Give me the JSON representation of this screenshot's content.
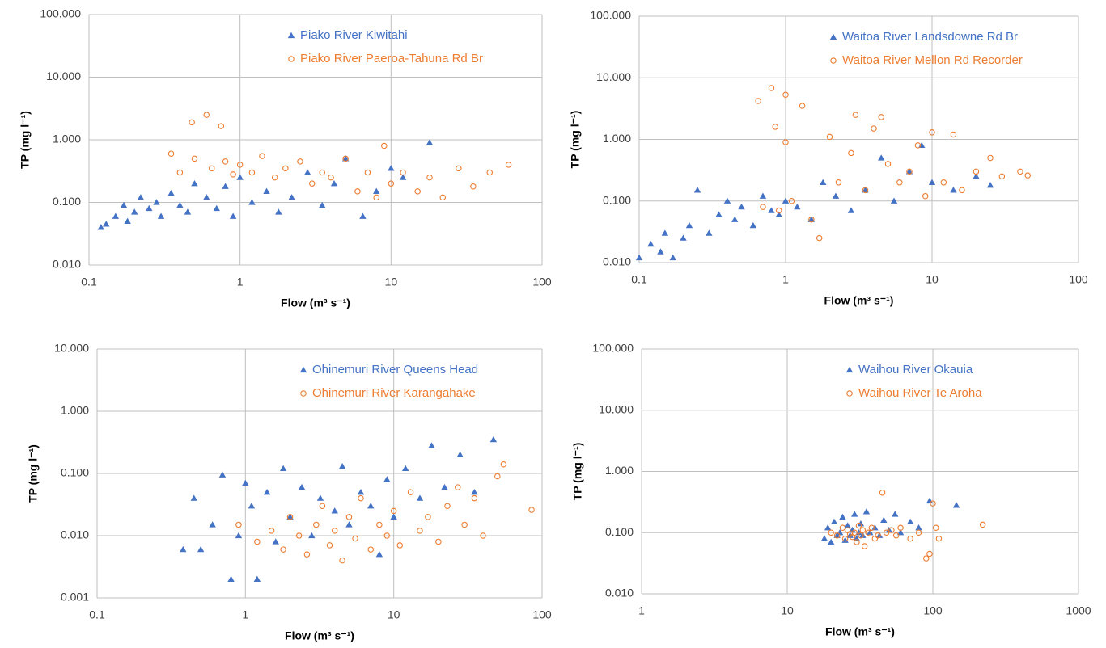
{
  "chart_data": [
    {
      "type": "scatter",
      "xlabel": "Flow (m³ s⁻¹)",
      "ylabel": "TP (mg l⁻¹)",
      "xscale": "log",
      "yscale": "log",
      "grid": true,
      "legend": "upper center",
      "xlim": [
        0.1,
        100
      ],
      "xticks": [
        0.1,
        1,
        10,
        100
      ],
      "ylim": [
        0.01,
        100
      ],
      "yticks": [
        {
          "value": 0.01,
          "label": "0.010"
        },
        {
          "value": 0.1,
          "label": "0.100"
        },
        {
          "value": 1,
          "label": "1.000"
        },
        {
          "value": 10,
          "label": "10.000"
        },
        {
          "value": 100,
          "label": "100.000"
        }
      ],
      "series": [
        {
          "name": "Piako River Kiwitahi",
          "color": "#4472c4",
          "marker": "triangle",
          "x": [
            0.12,
            0.13,
            0.15,
            0.17,
            0.18,
            0.2,
            0.22,
            0.25,
            0.28,
            0.3,
            0.35,
            0.4,
            0.45,
            0.5,
            0.6,
            0.7,
            0.8,
            0.9,
            1.0,
            1.2,
            1.5,
            1.8,
            2.2,
            2.8,
            3.5,
            4.2,
            5,
            6.5,
            8,
            10,
            12,
            18
          ],
          "values": [
            0.04,
            0.045,
            0.06,
            0.09,
            0.05,
            0.07,
            0.12,
            0.08,
            0.1,
            0.06,
            0.14,
            0.09,
            0.07,
            0.2,
            0.12,
            0.08,
            0.18,
            0.06,
            0.25,
            0.1,
            0.15,
            0.07,
            0.12,
            0.3,
            0.09,
            0.2,
            0.5,
            0.06,
            0.15,
            0.35,
            0.25,
            0.9
          ]
        },
        {
          "name": "Piako River Paeroa-Tahuna Rd Br",
          "color": "#ed7d31",
          "marker": "circle",
          "x": [
            0.35,
            0.4,
            0.48,
            0.5,
            0.6,
            0.65,
            0.75,
            0.8,
            0.9,
            1.0,
            1.2,
            1.4,
            1.7,
            2,
            2.5,
            3,
            3.5,
            4,
            5,
            6,
            7,
            8,
            9,
            10,
            12,
            15,
            18,
            22,
            28,
            35,
            45,
            60
          ],
          "values": [
            0.6,
            0.3,
            1.9,
            0.5,
            2.5,
            0.35,
            1.65,
            0.45,
            0.28,
            0.4,
            0.3,
            0.55,
            0.25,
            0.35,
            0.45,
            0.2,
            0.3,
            0.25,
            0.5,
            0.15,
            0.3,
            0.12,
            0.8,
            0.2,
            0.3,
            0.15,
            0.25,
            0.12,
            0.35,
            0.18,
            0.3,
            0.4
          ]
        }
      ]
    },
    {
      "type": "scatter",
      "xlabel": "Flow (m³ s⁻¹)",
      "ylabel": "TP (mg l⁻¹)",
      "xscale": "log",
      "yscale": "log",
      "grid": true,
      "legend": "upper center",
      "xlim": [
        0.1,
        100
      ],
      "xticks": [
        0.1,
        1,
        10,
        100
      ],
      "ylim": [
        0.01,
        100
      ],
      "yticks": [
        {
          "value": 0.01,
          "label": "0.010"
        },
        {
          "value": 0.1,
          "label": "0.100"
        },
        {
          "value": 1,
          "label": "1.000"
        },
        {
          "value": 10,
          "label": "10.000"
        },
        {
          "value": 100,
          "label": "100.000"
        }
      ],
      "series": [
        {
          "name": "Waitoa River Landsdowne Rd Br",
          "color": "#4472c4",
          "marker": "triangle",
          "x": [
            0.1,
            0.12,
            0.14,
            0.15,
            0.17,
            0.2,
            0.22,
            0.25,
            0.3,
            0.35,
            0.4,
            0.45,
            0.5,
            0.6,
            0.7,
            0.8,
            0.9,
            1,
            1.2,
            1.5,
            1.8,
            2.2,
            2.8,
            3.5,
            4.5,
            5.5,
            7,
            8.5,
            10,
            14,
            20,
            25
          ],
          "values": [
            0.012,
            0.02,
            0.015,
            0.03,
            0.012,
            0.025,
            0.04,
            0.15,
            0.03,
            0.06,
            0.1,
            0.05,
            0.08,
            0.04,
            0.12,
            0.07,
            0.06,
            0.1,
            0.08,
            0.05,
            0.2,
            0.12,
            0.07,
            0.15,
            0.5,
            0.1,
            0.3,
            0.8,
            0.2,
            0.15,
            0.25,
            0.18
          ]
        },
        {
          "name": "Waitoa River Mellon Rd Recorder",
          "color": "#ed7d31",
          "marker": "circle",
          "x": [
            0.65,
            0.7,
            0.8,
            0.85,
            0.9,
            1,
            1,
            1.1,
            1.3,
            1.5,
            1.7,
            2,
            2.3,
            2.8,
            3,
            3.5,
            4,
            4.5,
            5,
            6,
            7,
            8,
            9,
            10,
            12,
            14,
            16,
            20,
            25,
            30,
            40,
            45
          ],
          "values": [
            4.2,
            0.08,
            6.8,
            1.6,
            0.07,
            5.3,
            0.9,
            0.1,
            3.5,
            0.05,
            0.025,
            1.1,
            0.2,
            0.6,
            2.5,
            0.15,
            1.5,
            2.3,
            0.4,
            0.2,
            0.3,
            0.8,
            0.12,
            1.3,
            0.2,
            1.2,
            0.15,
            0.3,
            0.5,
            0.25,
            0.3,
            0.26
          ]
        }
      ]
    },
    {
      "type": "scatter",
      "xlabel": "Flow (m³ s⁻¹)",
      "ylabel": "TP (mg l⁻¹)",
      "xscale": "log",
      "yscale": "log",
      "grid": true,
      "legend": "upper center",
      "xlim": [
        0.1,
        100
      ],
      "xticks": [
        0.1,
        1,
        10,
        100
      ],
      "ylim": [
        0.001,
        10
      ],
      "yticks": [
        {
          "value": 0.001,
          "label": "0.001"
        },
        {
          "value": 0.01,
          "label": "0.010"
        },
        {
          "value": 0.1,
          "label": "0.100"
        },
        {
          "value": 1,
          "label": "1.000"
        },
        {
          "value": 10,
          "label": "10.000"
        }
      ],
      "series": [
        {
          "name": "Ohinemuri River Queens Head",
          "color": "#4472c4",
          "marker": "triangle",
          "x": [
            0.38,
            0.45,
            0.5,
            0.6,
            0.7,
            0.8,
            0.9,
            1,
            1.1,
            1.2,
            1.4,
            1.6,
            1.8,
            2,
            2.4,
            2.8,
            3.2,
            4,
            4.5,
            5,
            6,
            7,
            8,
            9,
            10,
            12,
            15,
            18,
            22,
            28,
            35,
            47
          ],
          "values": [
            0.006,
            0.04,
            0.006,
            0.015,
            0.095,
            0.002,
            0.01,
            0.07,
            0.03,
            0.002,
            0.05,
            0.008,
            0.12,
            0.02,
            0.06,
            0.01,
            0.04,
            0.025,
            0.13,
            0.015,
            0.05,
            0.03,
            0.005,
            0.08,
            0.02,
            0.12,
            0.04,
            0.28,
            0.06,
            0.2,
            0.05,
            0.35
          ]
        },
        {
          "name": "Ohinemuri River Karangahake",
          "color": "#ed7d31",
          "marker": "circle",
          "x": [
            0.9,
            1.2,
            1.5,
            1.8,
            2,
            2.3,
            2.6,
            3,
            3.3,
            3.7,
            4,
            4.5,
            5,
            5.5,
            6,
            7,
            8,
            9,
            10,
            11,
            13,
            15,
            17,
            20,
            23,
            27,
            30,
            35,
            40,
            50,
            55,
            85
          ],
          "values": [
            0.015,
            0.008,
            0.012,
            0.006,
            0.02,
            0.01,
            0.005,
            0.015,
            0.03,
            0.007,
            0.012,
            0.004,
            0.02,
            0.009,
            0.04,
            0.006,
            0.015,
            0.01,
            0.025,
            0.007,
            0.05,
            0.012,
            0.02,
            0.008,
            0.03,
            0.06,
            0.015,
            0.04,
            0.01,
            0.09,
            0.14,
            0.026
          ]
        }
      ]
    },
    {
      "type": "scatter",
      "xlabel": "Flow (m³ s⁻¹)",
      "ylabel": "TP (mg l⁻¹)",
      "xscale": "log",
      "yscale": "log",
      "grid": true,
      "legend": "upper center",
      "xlim": [
        1,
        1000
      ],
      "xticks": [
        1,
        10,
        100,
        1000
      ],
      "ylim": [
        0.01,
        100
      ],
      "yticks": [
        {
          "value": 0.01,
          "label": "0.010"
        },
        {
          "value": 0.1,
          "label": "0.100"
        },
        {
          "value": 1,
          "label": "1.000"
        },
        {
          "value": 10,
          "label": "10.000"
        },
        {
          "value": 100,
          "label": "100.000"
        }
      ],
      "series": [
        {
          "name": "Waihou River Okauia",
          "color": "#4472c4",
          "marker": "triangle",
          "x": [
            18,
            19,
            20,
            21,
            22,
            23,
            24,
            25,
            26,
            27,
            28,
            29,
            30,
            31,
            32,
            33,
            35,
            37,
            40,
            43,
            46,
            50,
            55,
            60,
            70,
            80,
            95,
            145
          ],
          "values": [
            0.08,
            0.12,
            0.07,
            0.15,
            0.09,
            0.1,
            0.18,
            0.075,
            0.13,
            0.09,
            0.11,
            0.2,
            0.08,
            0.1,
            0.14,
            0.09,
            0.22,
            0.1,
            0.12,
            0.09,
            0.16,
            0.11,
            0.2,
            0.1,
            0.15,
            0.12,
            0.33,
            0.28
          ]
        },
        {
          "name": "Waihou River Te Aroha",
          "color": "#ed7d31",
          "marker": "circle",
          "x": [
            20,
            22,
            24,
            25,
            26,
            27,
            28,
            29,
            30,
            31,
            32,
            33,
            34,
            36,
            38,
            40,
            42,
            45,
            48,
            52,
            56,
            60,
            70,
            80,
            90,
            95,
            100,
            105,
            110,
            220
          ],
          "values": [
            0.1,
            0.09,
            0.12,
            0.08,
            0.11,
            0.095,
            0.085,
            0.1,
            0.07,
            0.13,
            0.09,
            0.11,
            0.06,
            0.1,
            0.12,
            0.08,
            0.09,
            0.45,
            0.1,
            0.11,
            0.09,
            0.12,
            0.08,
            0.1,
            0.038,
            0.045,
            0.3,
            0.12,
            0.08,
            0.135
          ]
        }
      ]
    }
  ]
}
